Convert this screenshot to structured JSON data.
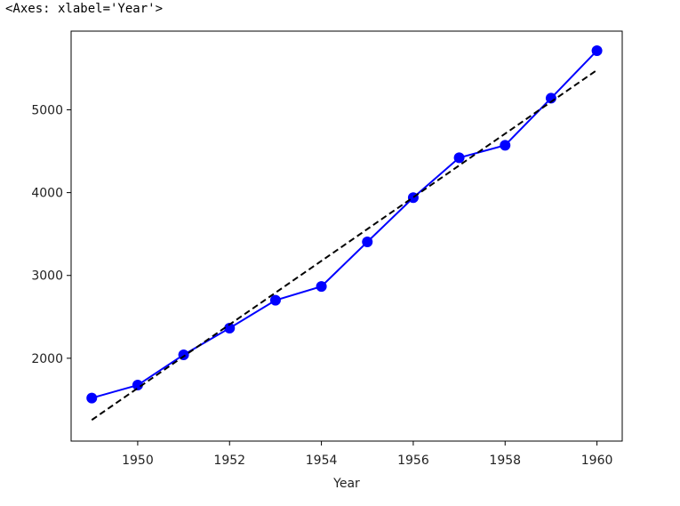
{
  "output_repr": "<Axes: xlabel='Year'>",
  "chart_data": {
    "type": "line",
    "xlabel": "Year",
    "ylabel": "",
    "xlim": [
      1948.55,
      1960.55
    ],
    "ylim": [
      1000,
      5950
    ],
    "xticks": [
      1950,
      1952,
      1954,
      1956,
      1958,
      1960
    ],
    "yticks": [
      2000,
      3000,
      4000,
      5000
    ],
    "grid": false,
    "series": [
      {
        "style": "solid-line-with-dot-markers",
        "color": "#0000ff",
        "x": [
          1949,
          1950,
          1951,
          1952,
          1953,
          1954,
          1955,
          1956,
          1957,
          1958,
          1959,
          1960
        ],
        "y": [
          1520,
          1676,
          2042,
          2364,
          2700,
          2867,
          3405,
          3939,
          4421,
          4572,
          5140,
          5714
        ]
      },
      {
        "style": "dashed-line",
        "color": "#000000",
        "x": [
          1949,
          1960
        ],
        "y": [
          1255,
          5480
        ]
      }
    ]
  }
}
